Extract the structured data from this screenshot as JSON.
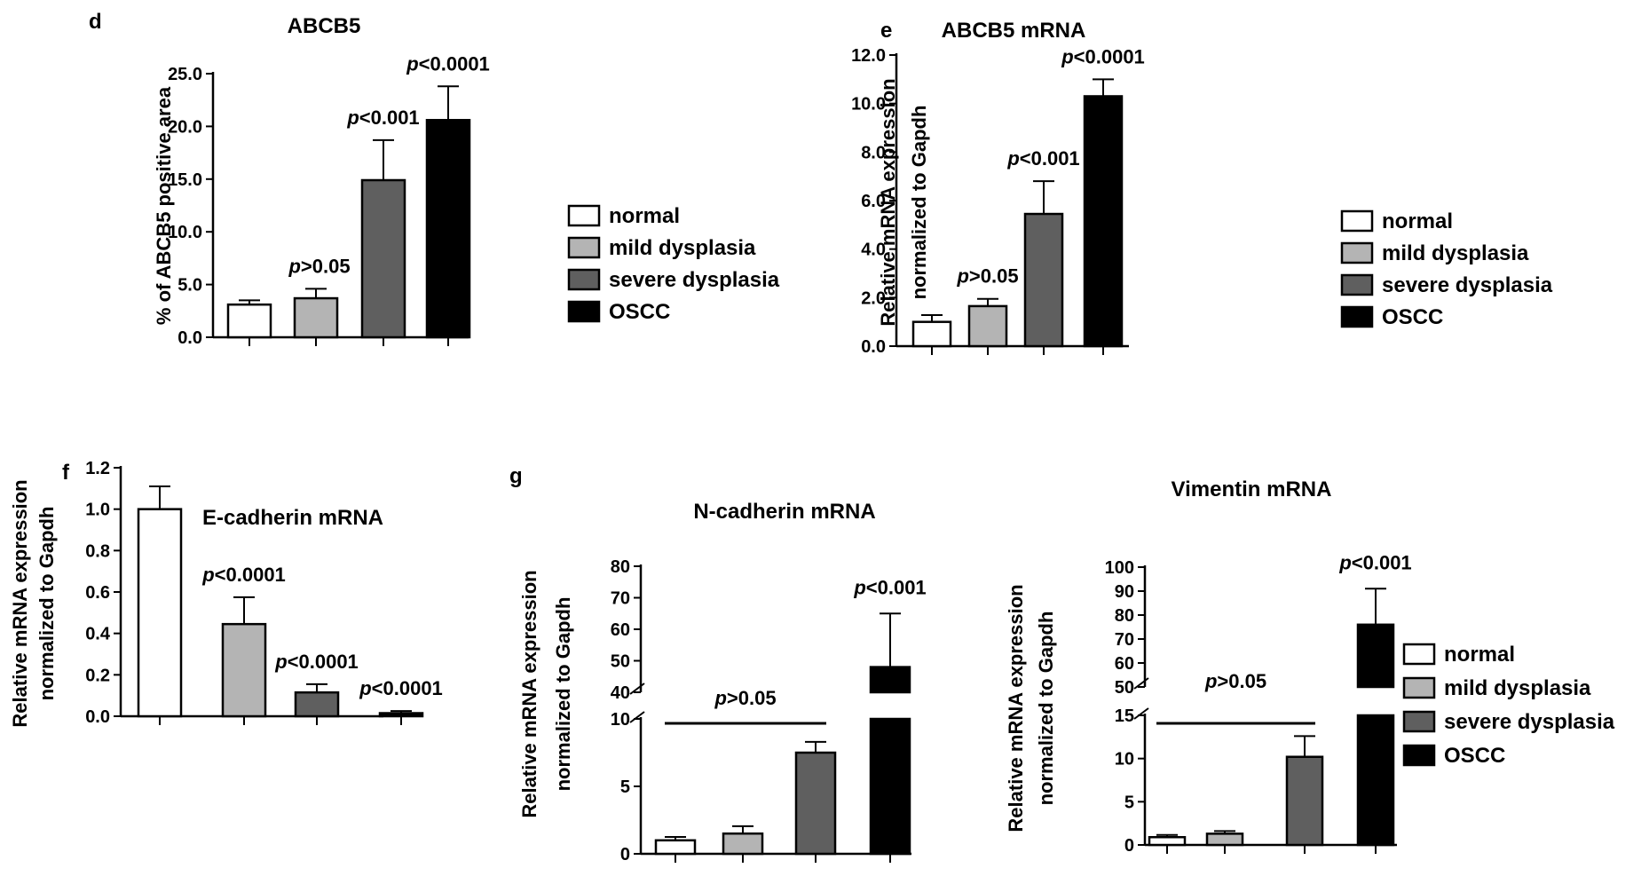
{
  "figure": {
    "legend": [
      {
        "label": "normal",
        "color": "#ffffff"
      },
      {
        "label": "mild dysplasia",
        "color": "#b4b4b4"
      },
      {
        "label": "severe dysplasia",
        "color": "#5f5f5f"
      },
      {
        "label": "OSCC",
        "color": "#000000"
      }
    ]
  },
  "chart_data": [
    {
      "panel": "d",
      "type": "bar",
      "title": "ABCB5",
      "ylabel": "% of ABCB5 positive area",
      "categories": [
        "normal",
        "mild dysplasia",
        "severe dysplasia",
        "OSCC"
      ],
      "values": [
        3.1,
        3.7,
        14.9,
        20.6
      ],
      "errors": [
        0.4,
        0.9,
        3.8,
        3.2
      ],
      "ylim": [
        0,
        25
      ],
      "yticks": [
        "0.0",
        "5.0",
        "10.0",
        "15.0",
        "20.0",
        "25.0"
      ],
      "annotations": [
        {
          "bar": 1,
          "label": "p>0.05"
        },
        {
          "bar": 2,
          "label": "p<0.001"
        },
        {
          "bar": 3,
          "label": "p<0.0001"
        }
      ]
    },
    {
      "panel": "e",
      "type": "bar",
      "title": "ABCB5 mRNA",
      "ylabel": [
        "Relative mRNA expression",
        "normalized to Gapdh"
      ],
      "categories": [
        "normal",
        "mild dysplasia",
        "severe dysplasia",
        "OSCC"
      ],
      "values": [
        1.0,
        1.65,
        5.45,
        10.3
      ],
      "errors": [
        0.28,
        0.3,
        1.35,
        0.7
      ],
      "ylim": [
        0,
        12
      ],
      "yticks": [
        "0.0",
        "2.0",
        "4.0",
        "6.0",
        "8.0",
        "10.0",
        "12.0"
      ],
      "annotations": [
        {
          "bar": 1,
          "label": "p>0.05"
        },
        {
          "bar": 2,
          "label": "p<0.001"
        },
        {
          "bar": 3,
          "label": "p<0.0001"
        }
      ]
    },
    {
      "panel": "f",
      "type": "bar",
      "title": "E-cadherin mRNA",
      "ylabel": [
        "Relative mRNA expression",
        "normalized to Gapdh"
      ],
      "categories": [
        "normal",
        "mild dysplasia",
        "severe dysplasia",
        "OSCC"
      ],
      "values": [
        1.0,
        0.445,
        0.115,
        0.015
      ],
      "errors": [
        0.11,
        0.13,
        0.04,
        0.01
      ],
      "ylim": [
        0,
        1.2
      ],
      "yticks": [
        "0.0",
        "0.2",
        "0.4",
        "0.6",
        "0.8",
        "1.0",
        "1.2"
      ],
      "annotations": [
        {
          "bar": 1,
          "label": "p<0.0001"
        },
        {
          "bar": 2,
          "label": "p<0.0001"
        },
        {
          "bar": 3,
          "label": "p<0.0001"
        }
      ]
    },
    {
      "panel": "g",
      "type": "bar",
      "title": "N-cadherin mRNA",
      "ylabel": [
        "Relative mRNA expression",
        "normalized to Gapdh"
      ],
      "categories": [
        "normal",
        "mild dysplasia",
        "severe dysplasia",
        "OSCC"
      ],
      "values": [
        1.0,
        1.5,
        7.5,
        48
      ],
      "errors": [
        0.25,
        0.55,
        0.8,
        17
      ],
      "broken_axis": {
        "lower": [
          0,
          10
        ],
        "upper": [
          40,
          80
        ]
      },
      "yticks_lower": [
        "0",
        "5",
        "10"
      ],
      "yticks_upper": [
        "40",
        "50",
        "60",
        "70",
        "80"
      ],
      "annotations": [
        {
          "group": [
            0,
            2
          ],
          "label": "p>0.05"
        },
        {
          "bar": 3,
          "label": "p<0.001"
        }
      ]
    },
    {
      "panel": "g",
      "type": "bar",
      "title": "Vimentin mRNA",
      "ylabel": [
        "Relative mRNA expression",
        "normalized to Gapdh"
      ],
      "categories": [
        "normal",
        "mild dysplasia",
        "severe dysplasia",
        "OSCC"
      ],
      "values": [
        0.9,
        1.3,
        10.2,
        76
      ],
      "errors": [
        0.25,
        0.3,
        2.4,
        15
      ],
      "broken_axis": {
        "lower": [
          0,
          15
        ],
        "upper": [
          50,
          100
        ]
      },
      "yticks_lower": [
        "0",
        "5",
        "10",
        "15"
      ],
      "yticks_upper": [
        "50",
        "60",
        "70",
        "80",
        "90",
        "100"
      ],
      "annotations": [
        {
          "group": [
            0,
            2
          ],
          "label": "p>0.05"
        },
        {
          "bar": 3,
          "label": "p<0.001"
        }
      ]
    }
  ]
}
